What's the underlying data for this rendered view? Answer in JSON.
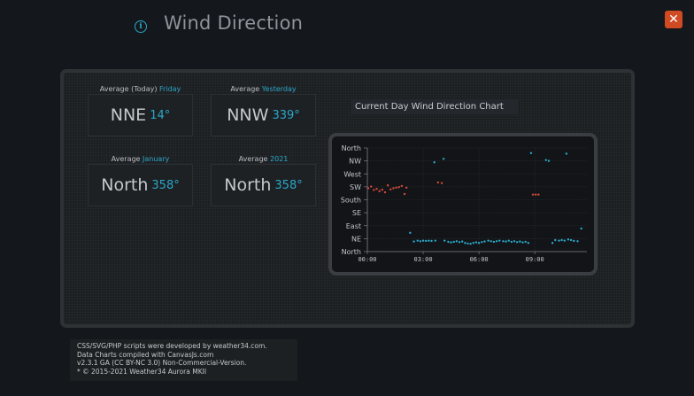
{
  "header": {
    "title": "Wind Direction",
    "info_icon": "info-icon",
    "close_label": "✕"
  },
  "averages": [
    {
      "label": "Average (Today)",
      "label_hl": "Friday",
      "direction": "NNE",
      "degrees": "14°"
    },
    {
      "label": "Average",
      "label_hl": "Yesterday",
      "direction": "NNW",
      "degrees": "339°"
    },
    {
      "label": "Average",
      "label_hl": "January",
      "direction": "North",
      "degrees": "358°"
    },
    {
      "label": "Average",
      "label_hl": "2021",
      "direction": "North",
      "degrees": "358°"
    }
  ],
  "chart_title": "Current Day Wind Direction Chart",
  "chart_data": {
    "type": "scatter",
    "y_tick_labels": [
      "North",
      "NE",
      "East",
      "SE",
      "South",
      "SW",
      "West",
      "NW",
      "North"
    ],
    "y_tick_values": [
      0,
      45,
      90,
      135,
      180,
      225,
      270,
      315,
      360
    ],
    "ylim": [
      0,
      360
    ],
    "x_tick_labels": [
      "00:00",
      "03:00",
      "06:00",
      "09:00"
    ],
    "x_tick_values": [
      0,
      3,
      6,
      9
    ],
    "xlim": [
      0,
      11.8
    ],
    "grid": true,
    "series": [
      {
        "color": "#d64a3c",
        "x": [
          0.05,
          0.2,
          0.35,
          0.5,
          0.65,
          0.8,
          0.95,
          1.1,
          1.25,
          1.4,
          1.55,
          1.7,
          1.85,
          2.0,
          2.1,
          3.8,
          4.0,
          8.9,
          9.05,
          9.2
        ],
        "y": [
          220,
          226,
          214,
          218,
          210,
          215,
          206,
          230,
          216,
          220,
          222,
          224,
          228,
          200,
          222,
          240,
          238,
          198,
          198,
          198
        ]
      },
      {
        "color": "#2aa7c9",
        "x": [
          2.3,
          2.5,
          2.7,
          2.85,
          3.0,
          3.15,
          3.3,
          3.45,
          3.65,
          4.15,
          4.35,
          4.5,
          4.65,
          4.8,
          4.95,
          5.1,
          5.25,
          5.4,
          5.55,
          5.7,
          5.85,
          6.0,
          6.15,
          6.3,
          6.5,
          6.65,
          6.8,
          6.95,
          7.1,
          7.3,
          7.45,
          7.6,
          7.75,
          7.9,
          8.05,
          8.2,
          8.35,
          8.5,
          8.65,
          9.95,
          10.1,
          10.3,
          10.45,
          10.6,
          10.8,
          10.95,
          11.1,
          11.3,
          11.5,
          3.6,
          4.1,
          8.8,
          9.6,
          9.75,
          10.7
        ],
        "y": [
          65,
          35,
          38,
          36,
          38,
          37,
          38,
          37,
          38,
          38,
          34,
          32,
          34,
          36,
          33,
          35,
          30,
          28,
          27,
          30,
          32,
          30,
          33,
          35,
          38,
          36,
          34,
          36,
          38,
          36,
          35,
          38,
          34,
          36,
          33,
          35,
          32,
          34,
          30,
          30,
          40,
          38,
          40,
          38,
          42,
          40,
          37,
          36,
          80,
          310,
          322,
          342,
          318,
          315,
          340
        ]
      }
    ]
  },
  "footer_lines": [
    "CSS/SVG/PHP scripts were developed by weather34.com.",
    "Data Charts compiled with CanvasJs.com",
    "v2.3.1 GA (CC BY-NC 3.0) Non-Commercial-Version.",
    "* © 2015-2021 Weather34 Aurora MKII"
  ]
}
